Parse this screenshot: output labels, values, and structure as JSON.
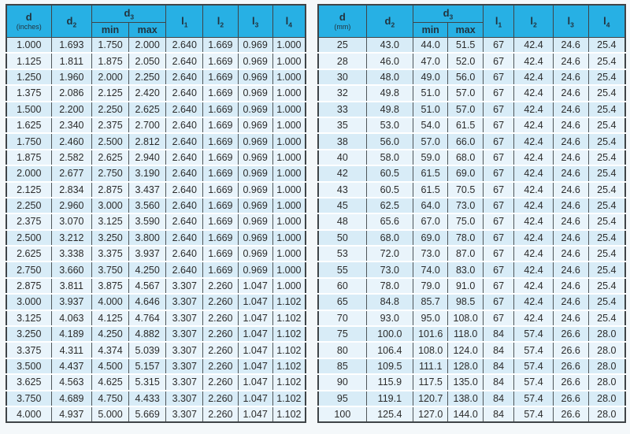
{
  "colors": {
    "header_bg": "#27b0e4",
    "header_text": "#22333e",
    "row_odd_bg": "#d8ecf7",
    "row_even_bg": "#e9f4fb",
    "row_separator": "#ffffff",
    "grid_border": "#3f4447",
    "page_bg": "#f4f8fa"
  },
  "left_table": {
    "unit_system": "inches",
    "headers": {
      "d": {
        "base": "d",
        "unit": "(inches)"
      },
      "d2": {
        "base": "d",
        "sub": "2"
      },
      "d3": {
        "base": "d",
        "sub": "3"
      },
      "min": "min",
      "max": "max",
      "l1": {
        "base": "l",
        "sub": "1"
      },
      "l2": {
        "base": "l",
        "sub": "2"
      },
      "l3": {
        "base": "l",
        "sub": "3"
      },
      "l4": {
        "base": "l",
        "sub": "4"
      }
    },
    "rows": [
      [
        "1.000",
        "1.693",
        "1.750",
        "2.000",
        "2.640",
        "1.669",
        "0.969",
        "1.000"
      ],
      [
        "1.125",
        "1.811",
        "1.875",
        "2.050",
        "2.640",
        "1.669",
        "0.969",
        "1.000"
      ],
      [
        "1.250",
        "1.960",
        "2.000",
        "2.250",
        "2.640",
        "1.669",
        "0.969",
        "1.000"
      ],
      [
        "1.375",
        "2.086",
        "2.125",
        "2.420",
        "2.640",
        "1.669",
        "0.969",
        "1.000"
      ],
      [
        "1.500",
        "2.200",
        "2.250",
        "2.625",
        "2.640",
        "1.669",
        "0.969",
        "1.000"
      ],
      [
        "1.625",
        "2.340",
        "2.375",
        "2.700",
        "2.640",
        "1.669",
        "0.969",
        "1.000"
      ],
      [
        "1.750",
        "2.460",
        "2.500",
        "2.812",
        "2.640",
        "1.669",
        "0.969",
        "1.000"
      ],
      [
        "1.875",
        "2.582",
        "2.625",
        "2.940",
        "2.640",
        "1.669",
        "0.969",
        "1.000"
      ],
      [
        "2.000",
        "2.677",
        "2.750",
        "3.190",
        "2.640",
        "1.669",
        "0.969",
        "1.000"
      ],
      [
        "2.125",
        "2.834",
        "2.875",
        "3.437",
        "2.640",
        "1.669",
        "0.969",
        "1.000"
      ],
      [
        "2.250",
        "2.960",
        "3.000",
        "3.560",
        "2.640",
        "1.669",
        "0.969",
        "1.000"
      ],
      [
        "2.375",
        "3.070",
        "3.125",
        "3.590",
        "2.640",
        "1.669",
        "0.969",
        "1.000"
      ],
      [
        "2.500",
        "3.212",
        "3.250",
        "3.800",
        "2.640",
        "1.669",
        "0.969",
        "1.000"
      ],
      [
        "2.625",
        "3.338",
        "3.375",
        "3.937",
        "2.640",
        "1.669",
        "0.969",
        "1.000"
      ],
      [
        "2.750",
        "3.660",
        "3.750",
        "4.250",
        "2.640",
        "1.669",
        "0.969",
        "1.000"
      ],
      [
        "2.875",
        "3.811",
        "3.875",
        "4.567",
        "3.307",
        "2.260",
        "1.047",
        "1.000"
      ],
      [
        "3.000",
        "3.937",
        "4.000",
        "4.646",
        "3.307",
        "2.260",
        "1.047",
        "1.102"
      ],
      [
        "3.125",
        "4.063",
        "4.125",
        "4.764",
        "3.307",
        "2.260",
        "1.047",
        "1.102"
      ],
      [
        "3.250",
        "4.189",
        "4.250",
        "4.882",
        "3.307",
        "2.260",
        "1.047",
        "1.102"
      ],
      [
        "3.375",
        "4.311",
        "4.374",
        "5.039",
        "3.307",
        "2.260",
        "1.047",
        "1.102"
      ],
      [
        "3.500",
        "4.437",
        "4.500",
        "5.157",
        "3.307",
        "2.260",
        "1.047",
        "1.102"
      ],
      [
        "3.625",
        "4.563",
        "4.625",
        "5.315",
        "3.307",
        "2.260",
        "1.047",
        "1.102"
      ],
      [
        "3.750",
        "4.689",
        "4.750",
        "4.433",
        "3.307",
        "2.260",
        "1.047",
        "1.102"
      ],
      [
        "4.000",
        "4.937",
        "5.000",
        "5.669",
        "3.307",
        "2.260",
        "1.047",
        "1.102"
      ]
    ]
  },
  "right_table": {
    "unit_system": "mm",
    "headers": {
      "d": {
        "base": "d",
        "unit": "(mm)"
      },
      "d2": {
        "base": "d",
        "sub": "2"
      },
      "d3": {
        "base": "d",
        "sub": "3"
      },
      "min": "min",
      "max": "max",
      "l1": {
        "base": "l",
        "sub": "1"
      },
      "l2": {
        "base": "l",
        "sub": "2"
      },
      "l3": {
        "base": "l",
        "sub": "3"
      },
      "l4": {
        "base": "l",
        "sub": "4"
      }
    },
    "rows": [
      [
        "25",
        "43.0",
        "44.0",
        "51.5",
        "67",
        "42.4",
        "24.6",
        "25.4"
      ],
      [
        "28",
        "46.0",
        "47.0",
        "52.0",
        "67",
        "42.4",
        "24.6",
        "25.4"
      ],
      [
        "30",
        "48.0",
        "49.0",
        "56.0",
        "67",
        "42.4",
        "24.6",
        "25.4"
      ],
      [
        "32",
        "49.8",
        "51.0",
        "57.0",
        "67",
        "42.4",
        "24.6",
        "25.4"
      ],
      [
        "33",
        "49.8",
        "51.0",
        "57.0",
        "67",
        "42.4",
        "24.6",
        "25.4"
      ],
      [
        "35",
        "53.0",
        "54.0",
        "61.5",
        "67",
        "42.4",
        "24.6",
        "25.4"
      ],
      [
        "38",
        "56.0",
        "57.0",
        "66.0",
        "67",
        "42.4",
        "24.6",
        "25.4"
      ],
      [
        "40",
        "58.0",
        "59.0",
        "68.0",
        "67",
        "42.4",
        "24.6",
        "25.4"
      ],
      [
        "42",
        "60.5",
        "61.5",
        "69.0",
        "67",
        "42.4",
        "24.6",
        "25.4"
      ],
      [
        "43",
        "60.5",
        "61.5",
        "70.5",
        "67",
        "42.4",
        "24.6",
        "25.4"
      ],
      [
        "45",
        "62.5",
        "64.0",
        "73.0",
        "67",
        "42.4",
        "24.6",
        "25.4"
      ],
      [
        "48",
        "65.6",
        "67.0",
        "75.0",
        "67",
        "42.4",
        "24.6",
        "25.4"
      ],
      [
        "50",
        "68.0",
        "69.0",
        "78.0",
        "67",
        "42.4",
        "24.6",
        "25.4"
      ],
      [
        "53",
        "72.0",
        "73.0",
        "87.0",
        "67",
        "42.4",
        "24.6",
        "25.4"
      ],
      [
        "55",
        "73.0",
        "74.0",
        "83.0",
        "67",
        "42.4",
        "24.6",
        "25.4"
      ],
      [
        "60",
        "78.0",
        "79.0",
        "91.0",
        "67",
        "42.4",
        "24.6",
        "25.4"
      ],
      [
        "65",
        "84.8",
        "85.7",
        "98.5",
        "67",
        "42.4",
        "24.6",
        "25.4"
      ],
      [
        "70",
        "93.0",
        "95.0",
        "108.0",
        "67",
        "42.4",
        "24.6",
        "25.4"
      ],
      [
        "75",
        "100.0",
        "101.6",
        "118.0",
        "84",
        "57.4",
        "26.6",
        "28.0"
      ],
      [
        "80",
        "106.4",
        "108.0",
        "124.0",
        "84",
        "57.4",
        "26.6",
        "28.0"
      ],
      [
        "85",
        "109.5",
        "111.1",
        "128.0",
        "84",
        "57.4",
        "26.6",
        "28.0"
      ],
      [
        "90",
        "115.9",
        "117.5",
        "135.0",
        "84",
        "57.4",
        "26.6",
        "28.0"
      ],
      [
        "95",
        "119.1",
        "120.7",
        "138.0",
        "84",
        "57.4",
        "26.6",
        "28.0"
      ],
      [
        "100",
        "125.4",
        "127.0",
        "144.0",
        "84",
        "57.4",
        "26.6",
        "28.0"
      ]
    ]
  }
}
